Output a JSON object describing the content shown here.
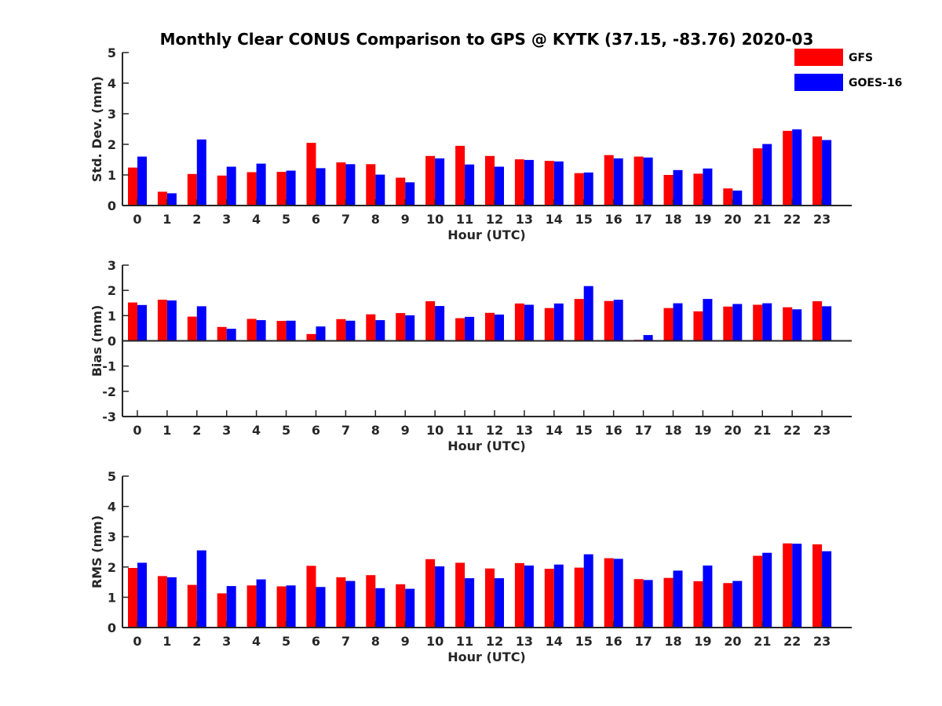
{
  "title": "Monthly Clear CONUS Comparison to GPS @ KYTK (37.15, -83.76) 2020-03",
  "legend": {
    "placement": "top-right",
    "items": [
      {
        "name": "GFS",
        "color": "#ff0000"
      },
      {
        "name": "GOES-16",
        "color": "#0000ff"
      }
    ]
  },
  "chart_data": [
    {
      "type": "bar",
      "xlabel": "Hour (UTC)",
      "ylabel": "Std. Dev. (mm)",
      "ylim": [
        0,
        5
      ],
      "yticks": [
        "0",
        "1",
        "2",
        "3",
        "4",
        "5"
      ],
      "categories": [
        "0",
        "1",
        "2",
        "3",
        "4",
        "5",
        "6",
        "7",
        "8",
        "9",
        "10",
        "11",
        "12",
        "13",
        "14",
        "15",
        "16",
        "17",
        "18",
        "19",
        "20",
        "21",
        "22",
        "23"
      ],
      "series": [
        {
          "name": "GFS",
          "color": "#ff0000",
          "values": [
            1.24,
            0.45,
            1.03,
            0.98,
            1.09,
            1.1,
            2.05,
            1.41,
            1.35,
            0.91,
            1.62,
            1.95,
            1.62,
            1.51,
            1.46,
            1.06,
            1.65,
            1.6,
            1.0,
            1.04,
            0.56,
            1.87,
            2.44,
            2.26
          ]
        },
        {
          "name": "GOES-16",
          "color": "#0000ff",
          "values": [
            1.6,
            0.4,
            2.16,
            1.27,
            1.37,
            1.14,
            1.22,
            1.35,
            1.01,
            0.76,
            1.54,
            1.34,
            1.27,
            1.49,
            1.44,
            1.08,
            1.54,
            1.57,
            1.16,
            1.21,
            0.49,
            2.01,
            2.49,
            2.14
          ]
        }
      ]
    },
    {
      "type": "bar",
      "xlabel": "Hour (UTC)",
      "ylabel": "Bias (mm)",
      "ylim": [
        -3,
        3
      ],
      "yticks": [
        "-3",
        "-2",
        "-1",
        "0",
        "1",
        "2",
        "3"
      ],
      "categories": [
        "0",
        "1",
        "2",
        "3",
        "4",
        "5",
        "6",
        "7",
        "8",
        "9",
        "10",
        "11",
        "12",
        "13",
        "14",
        "15",
        "16",
        "17",
        "18",
        "19",
        "20",
        "21",
        "22",
        "23"
      ],
      "series": [
        {
          "name": "GFS",
          "color": "#ff0000",
          "values": [
            1.52,
            1.63,
            0.96,
            0.55,
            0.87,
            0.79,
            0.27,
            0.86,
            1.05,
            1.1,
            1.57,
            0.9,
            1.11,
            1.48,
            1.3,
            1.66,
            1.58,
            0.04,
            1.3,
            1.17,
            1.36,
            1.43,
            1.33,
            1.57
          ]
        },
        {
          "name": "GOES-16",
          "color": "#0000ff",
          "values": [
            1.42,
            1.6,
            1.37,
            0.48,
            0.82,
            0.8,
            0.57,
            0.8,
            0.82,
            1.01,
            1.38,
            0.95,
            1.04,
            1.43,
            1.48,
            2.17,
            1.63,
            0.23,
            1.49,
            1.66,
            1.46,
            1.49,
            1.25,
            1.37
          ]
        }
      ]
    },
    {
      "type": "bar",
      "xlabel": "Hour (UTC)",
      "ylabel": "RMS (mm)",
      "ylim": [
        0,
        5
      ],
      "yticks": [
        "0",
        "1",
        "2",
        "3",
        "4",
        "5"
      ],
      "categories": [
        "0",
        "1",
        "2",
        "3",
        "4",
        "5",
        "6",
        "7",
        "8",
        "9",
        "10",
        "11",
        "12",
        "13",
        "14",
        "15",
        "16",
        "17",
        "18",
        "19",
        "20",
        "21",
        "22",
        "23"
      ],
      "series": [
        {
          "name": "GFS",
          "color": "#ff0000",
          "values": [
            1.97,
            1.7,
            1.41,
            1.13,
            1.39,
            1.36,
            2.04,
            1.66,
            1.73,
            1.43,
            2.26,
            2.14,
            1.95,
            2.13,
            1.94,
            1.98,
            2.29,
            1.6,
            1.64,
            1.53,
            1.47,
            2.37,
            2.78,
            2.75
          ]
        },
        {
          "name": "GOES-16",
          "color": "#0000ff",
          "values": [
            2.14,
            1.66,
            2.55,
            1.37,
            1.59,
            1.39,
            1.34,
            1.54,
            1.3,
            1.28,
            2.02,
            1.63,
            1.63,
            2.05,
            2.08,
            2.42,
            2.27,
            1.57,
            1.88,
            2.05,
            1.54,
            2.47,
            2.77,
            2.52
          ]
        }
      ]
    }
  ]
}
